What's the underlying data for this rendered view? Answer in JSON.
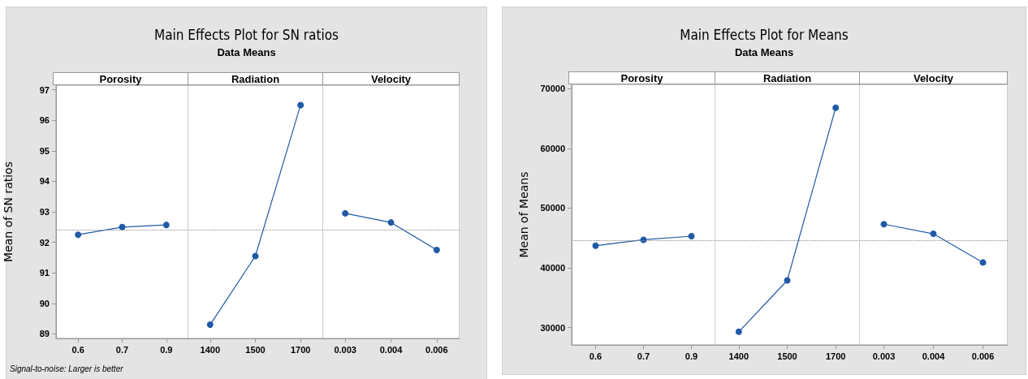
{
  "chart_data": [
    {
      "type": "line",
      "title": "Porosity",
      "annotations": [
        "Main Effects Plot for SN ratios",
        "Data Means",
        "Signal-to-noise: Larger is better"
      ],
      "ylabel": "Mean of SN ratios",
      "categories": [
        "0.6",
        "0.7",
        "0.9"
      ],
      "series": [
        {
          "color": "#1f5aa6",
          "values": [
            92.25,
            92.5,
            92.57
          ]
        }
      ],
      "ylim": [
        88.85,
        97.15
      ],
      "yticks": [
        89,
        90,
        91,
        92,
        93,
        94,
        95,
        96,
        97
      ],
      "ref_lines": [
        {
          "axis": "y",
          "value": 92.42,
          "color": "#888888",
          "line_style": "dotted"
        }
      ],
      "marker": "circle",
      "grid": false
    },
    {
      "type": "line",
      "title": "Radiation",
      "categories": [
        "1400",
        "1500",
        "1700"
      ],
      "series": [
        {
          "color": "#1f5aa6",
          "values": [
            89.3,
            91.55,
            96.5
          ]
        }
      ],
      "ylim": [
        88.85,
        97.15
      ],
      "yticks": [
        89,
        90,
        91,
        92,
        93,
        94,
        95,
        96,
        97
      ],
      "tick_labels": "x",
      "ref_lines": [
        {
          "axis": "y",
          "value": 92.42,
          "color": "#888888",
          "line_style": "dotted"
        }
      ],
      "marker": "circle",
      "grid": false
    },
    {
      "type": "line",
      "title": "Velocity",
      "categories": [
        "0.003",
        "0.004",
        "0.006"
      ],
      "series": [
        {
          "color": "#1f5aa6",
          "values": [
            92.95,
            92.65,
            91.75
          ]
        }
      ],
      "ylim": [
        88.85,
        97.15
      ],
      "yticks": [
        89,
        90,
        91,
        92,
        93,
        94,
        95,
        96,
        97
      ],
      "tick_labels": "x",
      "ref_lines": [
        {
          "axis": "y",
          "value": 92.42,
          "color": "#888888",
          "line_style": "dotted"
        }
      ],
      "marker": "circle",
      "grid": false
    },
    {
      "type": "line",
      "title": "Porosity",
      "annotations": [
        "Main Effects Plot for Means",
        "Data Means"
      ],
      "ylabel": "Mean of Means",
      "categories": [
        "0.6",
        "0.7",
        "0.9"
      ],
      "series": [
        {
          "color": "#1f5aa6",
          "values": [
            43700,
            44700,
            45300
          ]
        }
      ],
      "ylim": [
        27100,
        70700
      ],
      "yticks": [
        30000,
        40000,
        50000,
        60000,
        70000
      ],
      "ref_lines": [
        {
          "axis": "y",
          "value": 44600,
          "color": "#888888",
          "line_style": "dotted"
        }
      ],
      "marker": "circle",
      "grid": false
    },
    {
      "type": "line",
      "title": "Radiation",
      "categories": [
        "1400",
        "1500",
        "1700"
      ],
      "series": [
        {
          "color": "#1f5aa6",
          "values": [
            29300,
            37900,
            66800
          ]
        }
      ],
      "ylim": [
        27100,
        70700
      ],
      "yticks": [
        30000,
        40000,
        50000,
        60000,
        70000
      ],
      "tick_labels": "x",
      "ref_lines": [
        {
          "axis": "y",
          "value": 44600,
          "color": "#888888",
          "line_style": "dotted"
        }
      ],
      "marker": "circle",
      "grid": false
    },
    {
      "type": "line",
      "title": "Velocity",
      "categories": [
        "0.003",
        "0.004",
        "0.006"
      ],
      "series": [
        {
          "color": "#1f5aa6",
          "values": [
            47300,
            45700,
            40900
          ]
        }
      ],
      "ylim": [
        27100,
        70700
      ],
      "yticks": [
        30000,
        40000,
        50000,
        60000,
        70000
      ],
      "tick_labels": "x",
      "ref_lines": [
        {
          "axis": "y",
          "value": 44600,
          "color": "#888888",
          "line_style": "dotted"
        }
      ],
      "marker": "circle",
      "grid": false
    }
  ]
}
